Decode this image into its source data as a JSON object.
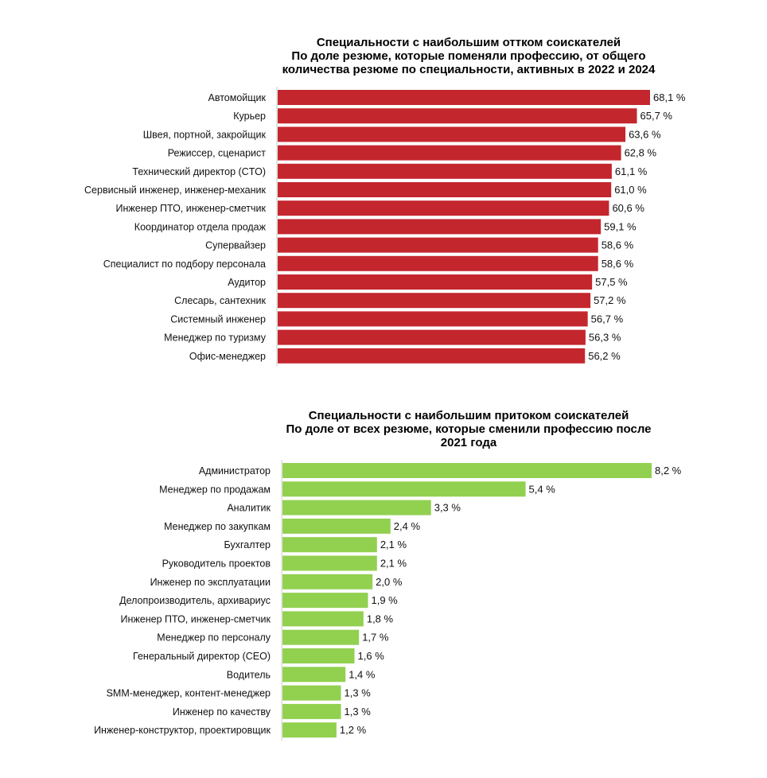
{
  "colors": {
    "churn": "#c4262e",
    "inflow": "#92d050",
    "axis": "#c8c8c8"
  },
  "chart_data": [
    {
      "type": "bar",
      "orientation": "horizontal",
      "title_lines": [
        "Специальности с наибольшим оттком соискателей",
        "По доле резюме, которые поменяли профессию, от общего",
        "количества резюме по специальности, активных в 2022 и 2024"
      ],
      "categories": [
        "Автомойщик",
        "Курьер",
        "Швея, портной, закройщик",
        "Режиссер, сценарист",
        "Технический директор (CTO)",
        "Сервисный инженер, инженер-механик",
        "Инженер ПТО, инженер-сметчик",
        "Координатор отдела продаж",
        "Супервайзер",
        "Специалист по подбору персонала",
        "Аудитор",
        "Слесарь, сантехник",
        "Системный инженер",
        "Менеджер по туризму",
        "Офис-менеджер"
      ],
      "values": [
        68.1,
        65.7,
        63.6,
        62.8,
        61.1,
        61.0,
        60.6,
        59.1,
        58.6,
        58.6,
        57.5,
        57.2,
        56.7,
        56.3,
        56.2
      ],
      "value_labels": [
        "68,1 %",
        "65,7 %",
        "63,6 %",
        "62,8 %",
        "61,1 %",
        "61,0 %",
        "60,6 %",
        "59,1 %",
        "58,6 %",
        "58,6 %",
        "57,5 %",
        "57,2 %",
        "56,7 %",
        "56,3 %",
        "56,2 %"
      ],
      "xlim": [
        0,
        68.1
      ],
      "unit": "%"
    },
    {
      "type": "bar",
      "orientation": "horizontal",
      "title_lines": [
        "Специальности с наибольшим притоком соискателей",
        "По доле от всех резюме, которые сменили профессию после",
        "2021 года"
      ],
      "categories": [
        "Администратор",
        "Менеджер по продажам",
        "Аналитик",
        "Менеджер по закупкам",
        "Бухгалтер",
        "Руководитель проектов",
        "Инженер по эксплуатации",
        "Делопроизводитель, архивариус",
        "Инженер ПТО, инженер-сметчик",
        "Менеджер по персоналу",
        "Генеральный директор (CEO)",
        "Водитель",
        "SMM-менеджер, контент-менеджер",
        "Инженер по качеству",
        "Инженер-конструктор, проектировщик"
      ],
      "values": [
        8.2,
        5.4,
        3.3,
        2.4,
        2.1,
        2.1,
        2.0,
        1.9,
        1.8,
        1.7,
        1.6,
        1.4,
        1.3,
        1.3,
        1.2
      ],
      "value_labels": [
        "8,2 %",
        "5,4 %",
        "3,3 %",
        "2,4 %",
        "2,1 %",
        "2,1 %",
        "2,0 %",
        "1,9 %",
        "1,8 %",
        "1,7 %",
        "1,6 %",
        "1,4 %",
        "1,3 %",
        "1,3 %",
        "1,2 %"
      ],
      "xlim": [
        0,
        8.2
      ],
      "unit": "%"
    }
  ]
}
